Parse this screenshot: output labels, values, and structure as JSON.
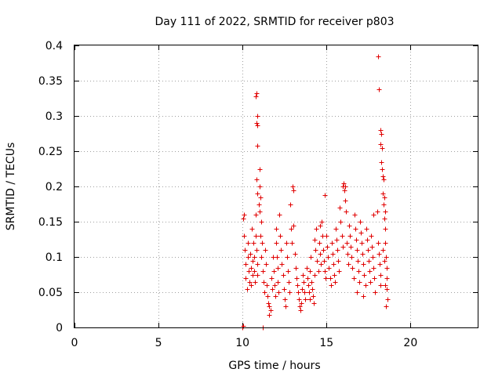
{
  "chart_data": {
    "type": "scatter",
    "title": "Day 111 of 2022, SRMTID for receiver p803",
    "xlabel": "GPS time / hours",
    "ylabel": "SRMTID / TECUs",
    "xlim": [
      0,
      24
    ],
    "ylim": [
      0,
      0.4
    ],
    "xticks": [
      0,
      5,
      10,
      15,
      20
    ],
    "xtick_labels": [
      "0",
      "5",
      "10",
      "15",
      "20"
    ],
    "yticks": [
      0,
      0.05,
      0.1,
      0.15,
      0.2,
      0.25,
      0.3,
      0.35,
      0.4
    ],
    "ytick_labels": [
      "0",
      "0.05",
      "0.1",
      "0.15",
      "0.2",
      "0.25",
      "0.3",
      "0.35",
      "0.4"
    ],
    "grid": true,
    "marker": "+",
    "color": "#e00000",
    "series": [
      {
        "name": "p803",
        "points": [
          [
            10.0,
            0.0
          ],
          [
            10.02,
            0.002
          ],
          [
            11.2,
            0.0
          ],
          [
            10.05,
            0.155
          ],
          [
            10.1,
            0.16
          ],
          [
            10.1,
            0.13
          ],
          [
            10.15,
            0.11
          ],
          [
            10.2,
            0.09
          ],
          [
            10.2,
            0.07
          ],
          [
            10.25,
            0.055
          ],
          [
            10.3,
            0.12
          ],
          [
            10.3,
            0.1
          ],
          [
            10.35,
            0.08
          ],
          [
            10.4,
            0.065
          ],
          [
            10.45,
            0.105
          ],
          [
            10.5,
            0.085
          ],
          [
            10.5,
            0.06
          ],
          [
            10.55,
            0.14
          ],
          [
            10.6,
            0.095
          ],
          [
            10.6,
            0.075
          ],
          [
            10.65,
            0.12
          ],
          [
            10.7,
            0.1
          ],
          [
            10.7,
            0.08
          ],
          [
            10.75,
            0.065
          ],
          [
            10.8,
            0.16
          ],
          [
            10.8,
            0.13
          ],
          [
            10.85,
            0.11
          ],
          [
            10.9,
            0.09
          ],
          [
            10.9,
            0.075
          ],
          [
            10.85,
            0.21
          ],
          [
            10.9,
            0.19
          ],
          [
            10.95,
            0.175
          ],
          [
            11.0,
            0.225
          ],
          [
            11.0,
            0.2
          ],
          [
            11.05,
            0.185
          ],
          [
            11.0,
            0.165
          ],
          [
            11.1,
            0.15
          ],
          [
            11.05,
            0.13
          ],
          [
            10.8,
            0.328
          ],
          [
            10.82,
            0.332
          ],
          [
            10.85,
            0.29
          ],
          [
            10.88,
            0.287
          ],
          [
            10.9,
            0.3
          ],
          [
            10.9,
            0.258
          ],
          [
            11.1,
            0.1
          ],
          [
            11.15,
            0.12
          ],
          [
            11.2,
            0.08
          ],
          [
            11.25,
            0.065
          ],
          [
            11.3,
            0.05
          ],
          [
            11.35,
            0.11
          ],
          [
            11.4,
            0.09
          ],
          [
            11.45,
            0.06
          ],
          [
            11.5,
            0.045
          ],
          [
            11.55,
            0.035
          ],
          [
            11.6,
            0.03
          ],
          [
            11.6,
            0.018
          ],
          [
            11.65,
            0.025
          ],
          [
            11.7,
            0.07
          ],
          [
            11.75,
            0.055
          ],
          [
            11.8,
            0.1
          ],
          [
            11.85,
            0.08
          ],
          [
            11.9,
            0.06
          ],
          [
            11.95,
            0.045
          ],
          [
            12.0,
            0.14
          ],
          [
            12.0,
            0.12
          ],
          [
            12.05,
            0.1
          ],
          [
            12.1,
            0.085
          ],
          [
            12.1,
            0.065
          ],
          [
            12.15,
            0.05
          ],
          [
            12.2,
            0.16
          ],
          [
            12.25,
            0.13
          ],
          [
            12.3,
            0.11
          ],
          [
            12.35,
            0.09
          ],
          [
            12.4,
            0.075
          ],
          [
            12.45,
            0.055
          ],
          [
            12.5,
            0.04
          ],
          [
            12.55,
            0.03
          ],
          [
            12.6,
            0.12
          ],
          [
            12.65,
            0.1
          ],
          [
            12.7,
            0.08
          ],
          [
            12.75,
            0.065
          ],
          [
            12.8,
            0.05
          ],
          [
            12.85,
            0.175
          ],
          [
            12.9,
            0.14
          ],
          [
            12.95,
            0.12
          ],
          [
            13.0,
            0.2
          ],
          [
            13.05,
            0.195
          ],
          [
            13.05,
            0.145
          ],
          [
            13.1,
            0.105
          ],
          [
            13.15,
            0.085
          ],
          [
            13.2,
            0.07
          ],
          [
            13.25,
            0.06
          ],
          [
            13.3,
            0.05
          ],
          [
            13.35,
            0.04
          ],
          [
            13.4,
            0.03
          ],
          [
            13.45,
            0.025
          ],
          [
            13.5,
            0.035
          ],
          [
            13.55,
            0.055
          ],
          [
            13.6,
            0.075
          ],
          [
            13.65,
            0.065
          ],
          [
            13.7,
            0.05
          ],
          [
            13.75,
            0.04
          ],
          [
            13.8,
            0.085
          ],
          [
            13.85,
            0.07
          ],
          [
            13.9,
            0.06
          ],
          [
            13.95,
            0.05
          ],
          [
            14.0,
            0.04
          ],
          [
            14.0,
            0.08
          ],
          [
            14.05,
            0.1
          ],
          [
            14.1,
            0.065
          ],
          [
            14.15,
            0.055
          ],
          [
            14.2,
            0.045
          ],
          [
            14.25,
            0.035
          ],
          [
            14.3,
            0.075
          ],
          [
            14.3,
            0.125
          ],
          [
            14.35,
            0.11
          ],
          [
            14.4,
            0.14
          ],
          [
            14.45,
            0.095
          ],
          [
            14.5,
            0.08
          ],
          [
            14.55,
            0.12
          ],
          [
            14.6,
            0.105
          ],
          [
            14.65,
            0.09
          ],
          [
            14.7,
            0.15
          ],
          [
            14.75,
            0.13
          ],
          [
            14.6,
            0.145
          ],
          [
            14.9,
            0.188
          ],
          [
            14.8,
            0.11
          ],
          [
            14.85,
            0.095
          ],
          [
            14.9,
            0.08
          ],
          [
            14.95,
            0.07
          ],
          [
            15.0,
            0.13
          ],
          [
            15.05,
            0.115
          ],
          [
            15.1,
            0.1
          ],
          [
            15.15,
            0.085
          ],
          [
            15.2,
            0.07
          ],
          [
            15.25,
            0.06
          ],
          [
            15.3,
            0.12
          ],
          [
            15.35,
            0.105
          ],
          [
            15.4,
            0.09
          ],
          [
            15.45,
            0.075
          ],
          [
            15.5,
            0.065
          ],
          [
            15.55,
            0.14
          ],
          [
            15.6,
            0.125
          ],
          [
            15.65,
            0.11
          ],
          [
            15.7,
            0.095
          ],
          [
            15.75,
            0.08
          ],
          [
            15.8,
            0.17
          ],
          [
            15.85,
            0.15
          ],
          [
            15.9,
            0.13
          ],
          [
            15.95,
            0.115
          ],
          [
            15.95,
            0.2
          ],
          [
            16.0,
            0.205
          ],
          [
            16.05,
            0.195
          ],
          [
            16.1,
            0.2
          ],
          [
            16.1,
            0.18
          ],
          [
            16.15,
            0.165
          ],
          [
            16.2,
            0.12
          ],
          [
            16.25,
            0.105
          ],
          [
            16.3,
            0.09
          ],
          [
            16.35,
            0.145
          ],
          [
            16.4,
            0.13
          ],
          [
            16.45,
            0.115
          ],
          [
            16.5,
            0.1
          ],
          [
            16.55,
            0.085
          ],
          [
            16.6,
            0.07
          ],
          [
            16.65,
            0.16
          ],
          [
            16.7,
            0.14
          ],
          [
            16.75,
            0.125
          ],
          [
            16.8,
            0.11
          ],
          [
            16.85,
            0.095
          ],
          [
            16.9,
            0.08
          ],
          [
            16.95,
            0.065
          ],
          [
            17.0,
            0.15
          ],
          [
            17.05,
            0.135
          ],
          [
            17.1,
            0.12
          ],
          [
            17.15,
            0.105
          ],
          [
            17.2,
            0.09
          ],
          [
            17.25,
            0.075
          ],
          [
            17.3,
            0.06
          ],
          [
            17.35,
            0.14
          ],
          [
            17.4,
            0.125
          ],
          [
            17.45,
            0.11
          ],
          [
            17.5,
            0.095
          ],
          [
            17.55,
            0.08
          ],
          [
            17.6,
            0.065
          ],
          [
            17.65,
            0.13
          ],
          [
            17.7,
            0.115
          ],
          [
            17.75,
            0.1
          ],
          [
            17.8,
            0.085
          ],
          [
            17.85,
            0.07
          ],
          [
            16.8,
            0.05
          ],
          [
            17.2,
            0.045
          ],
          [
            17.9,
            0.05
          ],
          [
            17.8,
            0.16
          ],
          [
            18.0,
            0.165
          ],
          [
            18.05,
            0.12
          ],
          [
            18.1,
            0.105
          ],
          [
            18.15,
            0.09
          ],
          [
            18.2,
            0.075
          ],
          [
            18.2,
            0.06
          ],
          [
            18.1,
            0.338
          ],
          [
            18.05,
            0.385
          ],
          [
            18.2,
            0.28
          ],
          [
            18.25,
            0.275
          ],
          [
            18.2,
            0.26
          ],
          [
            18.3,
            0.255
          ],
          [
            18.25,
            0.235
          ],
          [
            18.3,
            0.225
          ],
          [
            18.35,
            0.215
          ],
          [
            18.4,
            0.21
          ],
          [
            18.35,
            0.19
          ],
          [
            18.45,
            0.185
          ],
          [
            18.4,
            0.175
          ],
          [
            18.5,
            0.165
          ],
          [
            18.45,
            0.155
          ],
          [
            18.5,
            0.14
          ],
          [
            18.5,
            0.12
          ],
          [
            18.55,
            0.1
          ],
          [
            18.6,
            0.085
          ],
          [
            18.6,
            0.07
          ],
          [
            18.6,
            0.055
          ],
          [
            18.65,
            0.04
          ],
          [
            18.55,
            0.03
          ],
          [
            18.5,
            0.06
          ],
          [
            18.45,
            0.095
          ],
          [
            18.35,
            0.11
          ]
        ]
      }
    ]
  }
}
